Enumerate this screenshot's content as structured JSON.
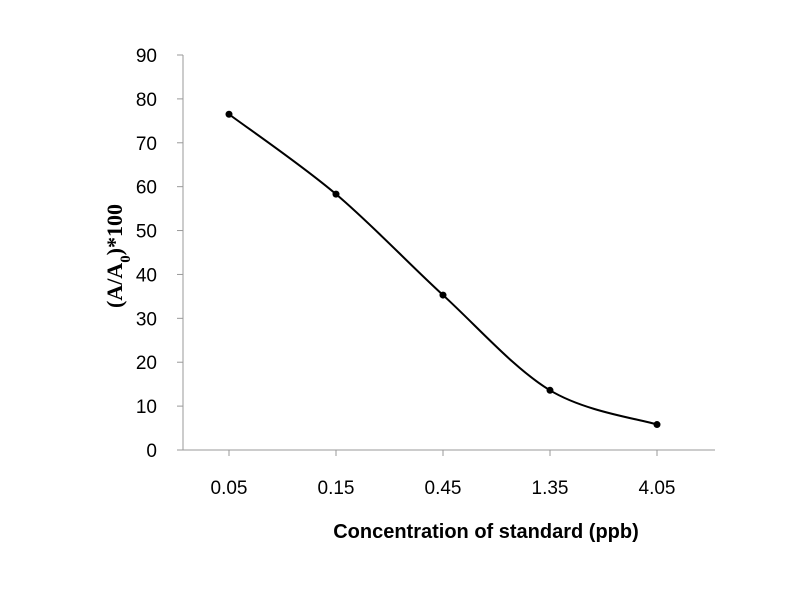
{
  "chart_data": {
    "type": "line",
    "categories": [
      "0.05",
      "0.15",
      "0.45",
      "1.35",
      "4.05"
    ],
    "series": [
      {
        "values": [
          76.5,
          58.3,
          35.3,
          13.6,
          5.8
        ]
      }
    ],
    "ylim": [
      0,
      90
    ],
    "yticks": [
      0,
      10,
      20,
      30,
      40,
      50,
      60,
      70,
      80,
      90
    ],
    "xlabel": "Concentration of standard (ppb)",
    "ylabel_main": "(A/A",
    "ylabel_sub": "0",
    "ylabel_tail": ")*100",
    "grid": false,
    "smooth": true,
    "line_color": "#000000",
    "marker_color": "#000000"
  }
}
